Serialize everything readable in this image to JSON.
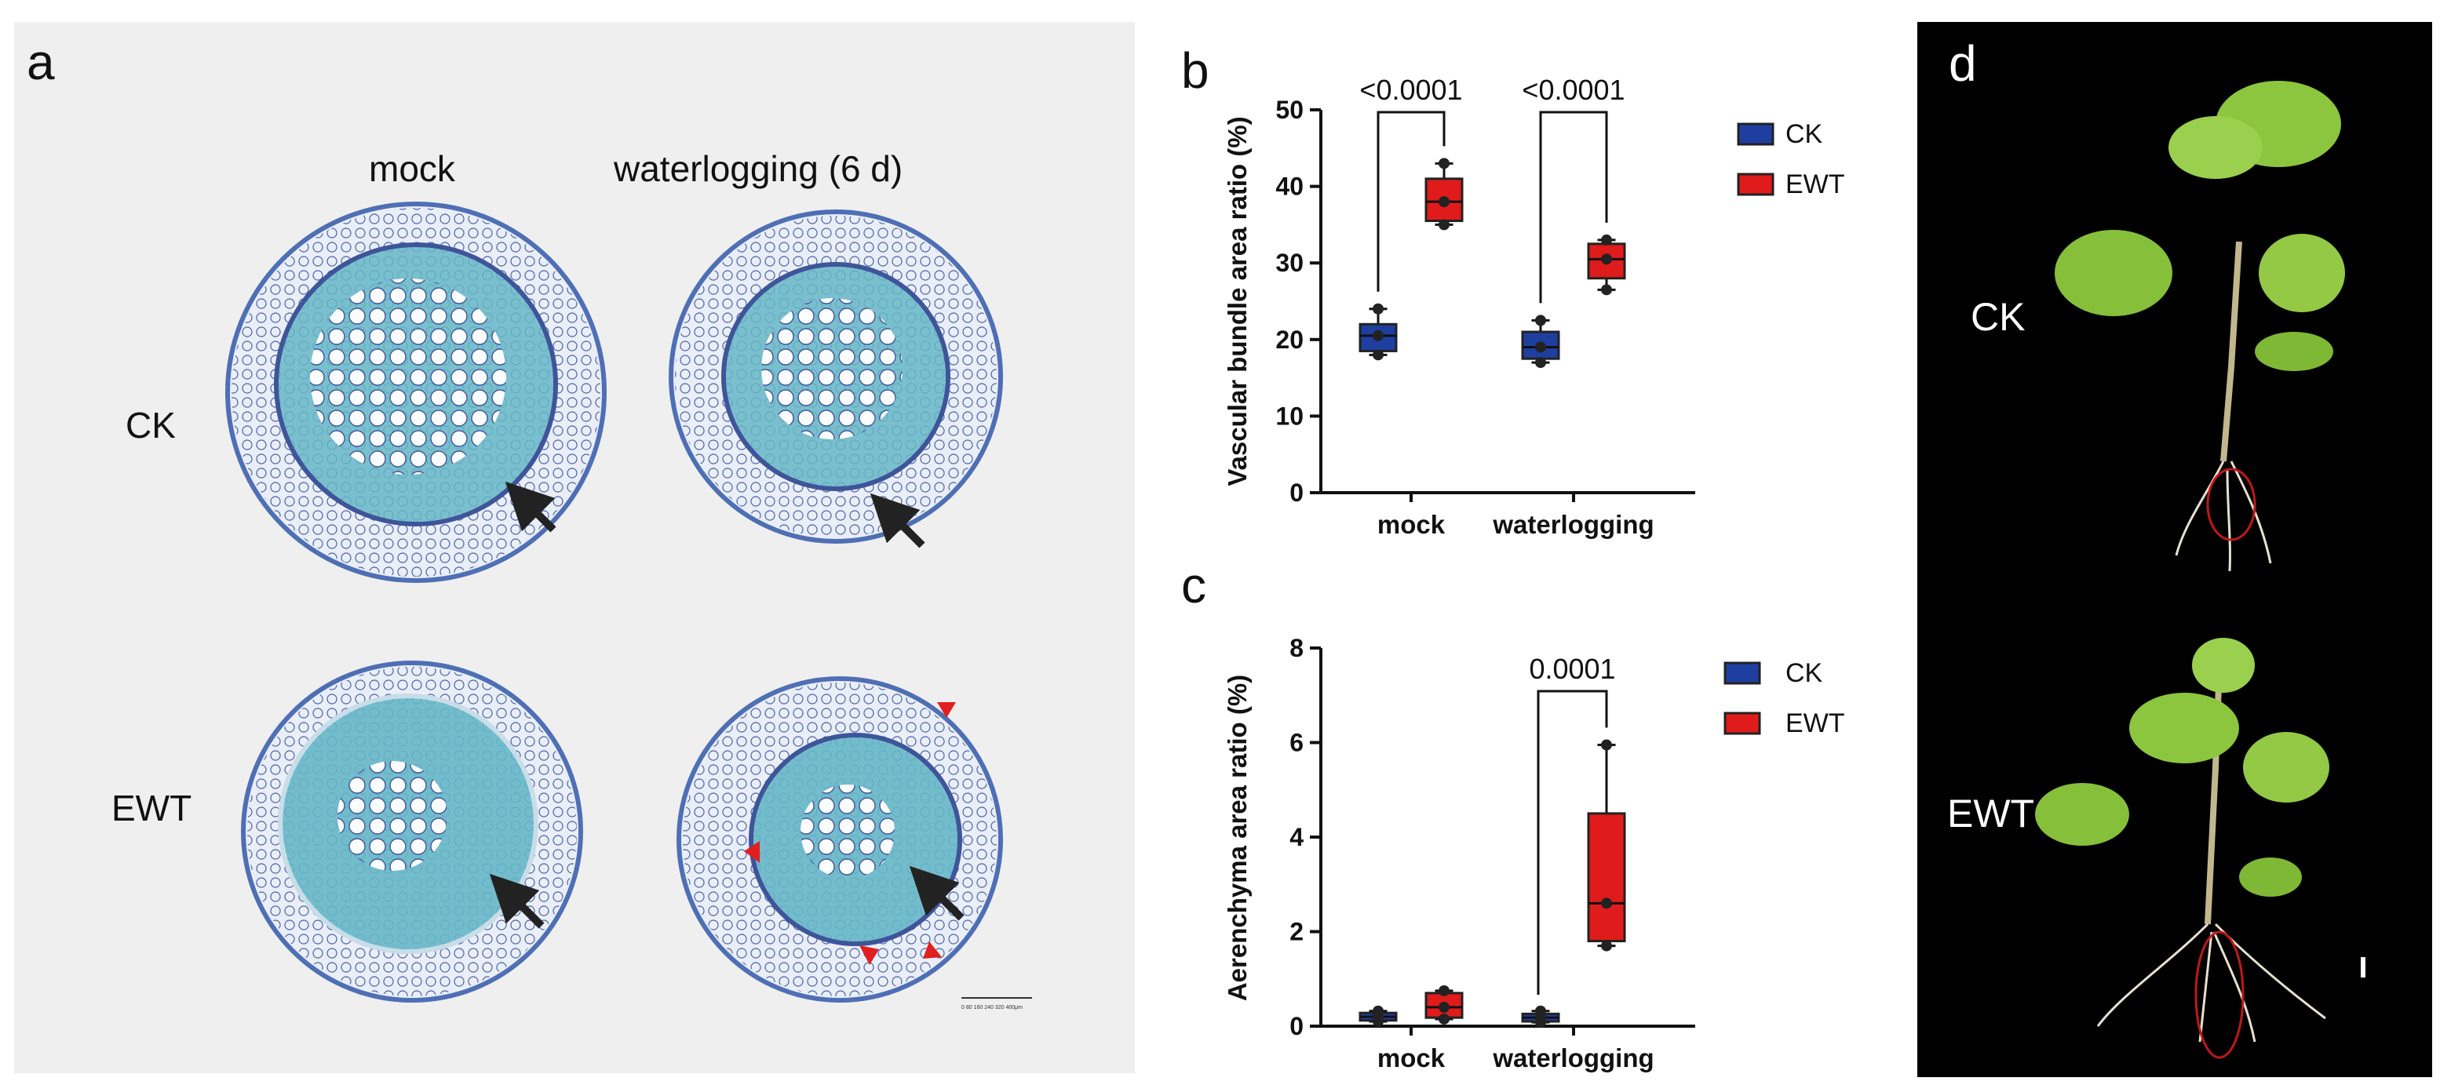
{
  "panel_a": {
    "letter": "a",
    "col_labels": [
      "mock",
      "waterlogging (6 d)"
    ],
    "row_labels": [
      "CK",
      "EWT"
    ],
    "scale_bar_label": "0 80 160 240 320 400μm",
    "colors": {
      "tissue_blue": "#4f6fb5",
      "stain_cyan": "#66b6c6",
      "arrow": "#222222",
      "marker": "#e02020"
    }
  },
  "panel_d": {
    "letter": "d",
    "plant_labels": [
      "CK",
      "EWT"
    ],
    "colors": {
      "leaf": "#8cc63f",
      "root": "#e8e0d0",
      "circle": "#c01818"
    }
  },
  "chart_data": [
    {
      "panel": "b",
      "type": "box",
      "ylabel": "Vascular bundle area ratio (%)",
      "ylim": [
        0,
        50
      ],
      "yticks": [
        0,
        10,
        20,
        30,
        40,
        50
      ],
      "categories": [
        "mock",
        "waterlogging"
      ],
      "legend": [
        "CK",
        "EWT"
      ],
      "legend_position": "right",
      "colors": {
        "CK": "#1f3fa0",
        "EWT": "#e01b1b"
      },
      "series": [
        {
          "name": "CK",
          "boxes": [
            {
              "min": 18,
              "q1": 18.5,
              "median": 20.5,
              "q3": 22,
              "max": 24
            },
            {
              "min": 17,
              "q1": 17.5,
              "median": 19,
              "q3": 21,
              "max": 22.5
            }
          ]
        },
        {
          "name": "EWT",
          "boxes": [
            {
              "min": 35,
              "q1": 35.5,
              "median": 38,
              "q3": 41,
              "max": 43
            },
            {
              "min": 26.5,
              "q1": 28,
              "median": 30.5,
              "q3": 32.5,
              "max": 33
            }
          ]
        }
      ],
      "annotations": [
        "<0.0001",
        "<0.0001"
      ]
    },
    {
      "panel": "c",
      "type": "box",
      "ylabel": "Aerenchyma area ratio (%)",
      "ylim": [
        0,
        8
      ],
      "yticks": [
        0,
        2,
        4,
        6,
        8
      ],
      "categories": [
        "mock",
        "waterlogging"
      ],
      "legend": [
        "CK",
        "EWT"
      ],
      "legend_position": "right",
      "colors": {
        "CK": "#1f3fa0",
        "EWT": "#e01b1b"
      },
      "series": [
        {
          "name": "CK",
          "boxes": [
            {
              "min": 0.1,
              "q1": 0.12,
              "median": 0.2,
              "q3": 0.28,
              "max": 0.32
            },
            {
              "min": 0.08,
              "q1": 0.1,
              "median": 0.18,
              "q3": 0.26,
              "max": 0.32
            }
          ]
        },
        {
          "name": "EWT",
          "boxes": [
            {
              "min": 0.15,
              "q1": 0.18,
              "median": 0.4,
              "q3": 0.7,
              "max": 0.75
            },
            {
              "min": 1.7,
              "q1": 1.8,
              "median": 2.6,
              "q3": 4.5,
              "max": 5.95
            }
          ]
        }
      ],
      "annotations": [
        "0.0001"
      ]
    }
  ]
}
